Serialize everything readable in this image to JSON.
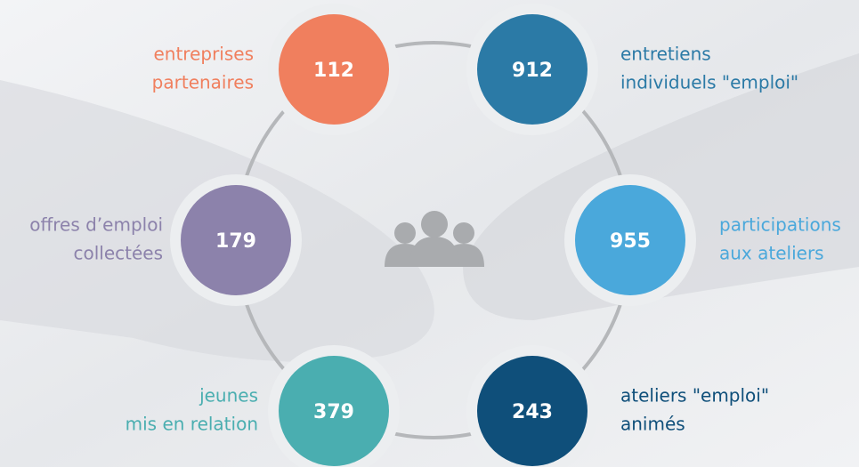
{
  "nodes": [
    {
      "value": 112,
      "label": [
        "entreprises",
        "partenaires"
      ],
      "color": "#f07f5e"
    },
    {
      "value": 912,
      "label": [
        "entretiens",
        "individuels \"emploi\""
      ],
      "color": "#2b7aa6"
    },
    {
      "value": 179,
      "label": [
        "offres d’emploi",
        "collectées"
      ],
      "color": "#8c82ab"
    },
    {
      "value": 955,
      "label": [
        "participations",
        "aux ateliers"
      ],
      "color": "#4aa8db"
    },
    {
      "value": 379,
      "label": [
        "jeunes",
        "mis en relation"
      ],
      "color": "#4aaeb0"
    },
    {
      "value": 243,
      "label": [
        "ateliers \"emploi\"",
        "animés"
      ],
      "color": "#0f4f7a"
    }
  ]
}
